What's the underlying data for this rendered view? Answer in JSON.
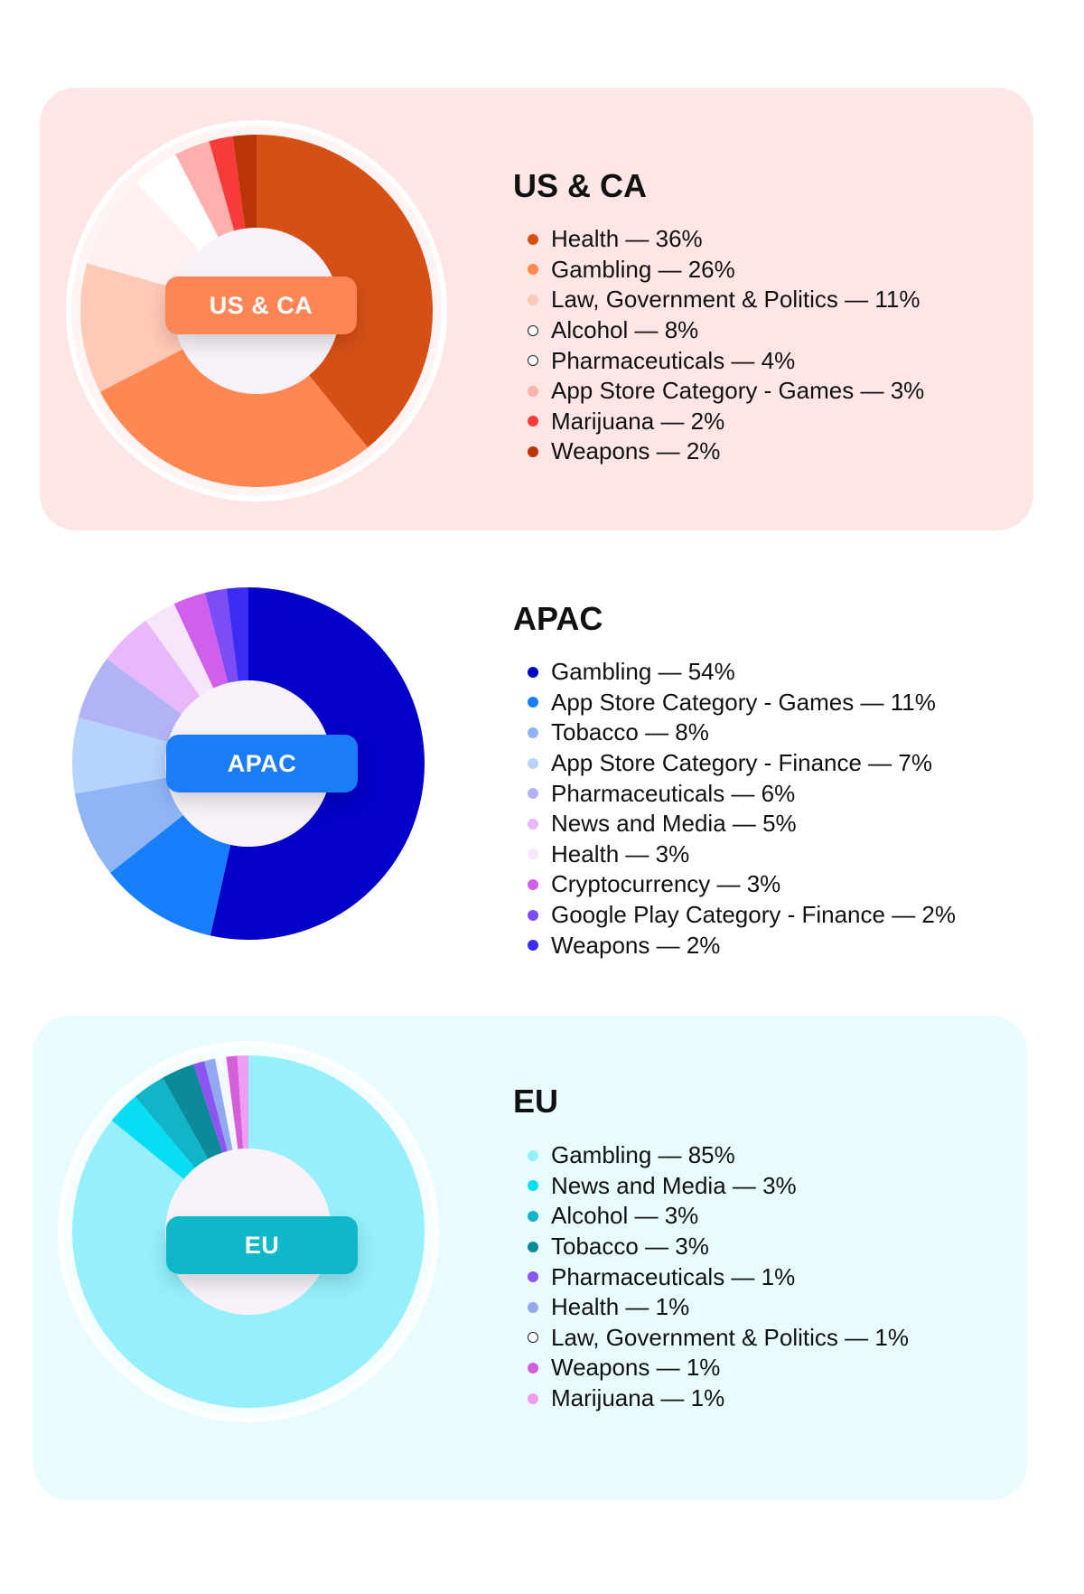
{
  "chart_data": [
    {
      "type": "pie",
      "region": "us-ca",
      "title": "US & CA",
      "center_label": "US & CA",
      "badge_color": "#ff8556",
      "background": "#fee6e6",
      "slices": [
        {
          "label": "Health",
          "value": 36,
          "color": "#d65016",
          "text": "Health — 36%"
        },
        {
          "label": "Gambling",
          "value": 26,
          "color": "#ff8752",
          "text": "Gambling — 26%"
        },
        {
          "label": "Law, Government & Politics",
          "value": 11,
          "color": "#ffc9b7",
          "text": "Law, Government & Politics — 11%"
        },
        {
          "label": "Alcohol",
          "value": 8,
          "color": "#fff1f1",
          "text": "Alcohol — 8%"
        },
        {
          "label": "Pharmaceuticals",
          "value": 4,
          "color": "#ffffff",
          "text": "Pharmaceuticals — 4%"
        },
        {
          "label": "App Store Category - Games",
          "value": 3,
          "color": "#ffb0ad",
          "text": "App Store Category - Games — 3%"
        },
        {
          "label": "Marijuana",
          "value": 2,
          "color": "#f73b3b",
          "text": "Marijuana — 2%"
        },
        {
          "label": "Weapons",
          "value": 2,
          "color": "#b93508",
          "text": "Weapons — 2%"
        }
      ]
    },
    {
      "type": "pie",
      "region": "apac",
      "title": "APAC",
      "center_label": "APAC",
      "badge_color": "#1a7df7",
      "background": "#ffffff",
      "slices": [
        {
          "label": "Gambling",
          "value": 54,
          "color": "#0300c9",
          "text": "Gambling — 54%"
        },
        {
          "label": "App Store Category - Games",
          "value": 11,
          "color": "#177ffc",
          "text": "App Store Category - Games — 11%"
        },
        {
          "label": "Tobacco",
          "value": 8,
          "color": "#90b5f7",
          "text": "Tobacco — 8%"
        },
        {
          "label": "App Store Category - Finance",
          "value": 7,
          "color": "#b6d3fe",
          "text": "App Store Category - Finance — 7%"
        },
        {
          "label": "Pharmaceuticals",
          "value": 6,
          "color": "#b2b3f6",
          "text": "Pharmaceuticals — 6%"
        },
        {
          "label": "News and Media",
          "value": 5,
          "color": "#e8b8fb",
          "text": "News and Media — 5%"
        },
        {
          "label": "Health",
          "value": 3,
          "color": "#f6e6fb",
          "text": "Health — 3%"
        },
        {
          "label": "Cryptocurrency",
          "value": 3,
          "color": "#d05fec",
          "text": "Cryptocurrency — 3%"
        },
        {
          "label": "Google Play Category - Finance",
          "value": 2,
          "color": "#7c4cf7",
          "text": "Google Play Category - Finance — 2%"
        },
        {
          "label": "Weapons",
          "value": 2,
          "color": "#3a2cf2",
          "text": "Weapons — 2%"
        }
      ]
    },
    {
      "type": "pie",
      "region": "eu",
      "title": "EU",
      "center_label": "EU",
      "badge_color": "#0eb8c8",
      "background": "#e8fbfd",
      "slices": [
        {
          "label": "Gambling",
          "value": 85,
          "color": "#95f0fc",
          "text": "Gambling — 85%"
        },
        {
          "label": "News and Media",
          "value": 3,
          "color": "#08ddf4",
          "text": "News and Media — 3%"
        },
        {
          "label": "Alcohol",
          "value": 3,
          "color": "#10b5c7",
          "text": "Alcohol — 3%"
        },
        {
          "label": "Tobacco",
          "value": 3,
          "color": "#0b8a9a",
          "text": "Tobacco — 3%"
        },
        {
          "label": "Pharmaceuticals",
          "value": 1,
          "color": "#8d55f0",
          "text": "Pharmaceuticals — 1%"
        },
        {
          "label": "Health",
          "value": 1,
          "color": "#93a9ef",
          "text": "Health — 1%"
        },
        {
          "label": "Law, Government & Politics",
          "value": 1,
          "color": "#f4f7fb",
          "text": "Law, Government & Politics — 1%"
        },
        {
          "label": "Weapons",
          "value": 1,
          "color": "#d35fdb",
          "text": "Weapons — 1%"
        },
        {
          "label": "Marijuana",
          "value": 1,
          "color": "#ef9df0",
          "text": "Marijuana — 1%"
        }
      ]
    }
  ]
}
